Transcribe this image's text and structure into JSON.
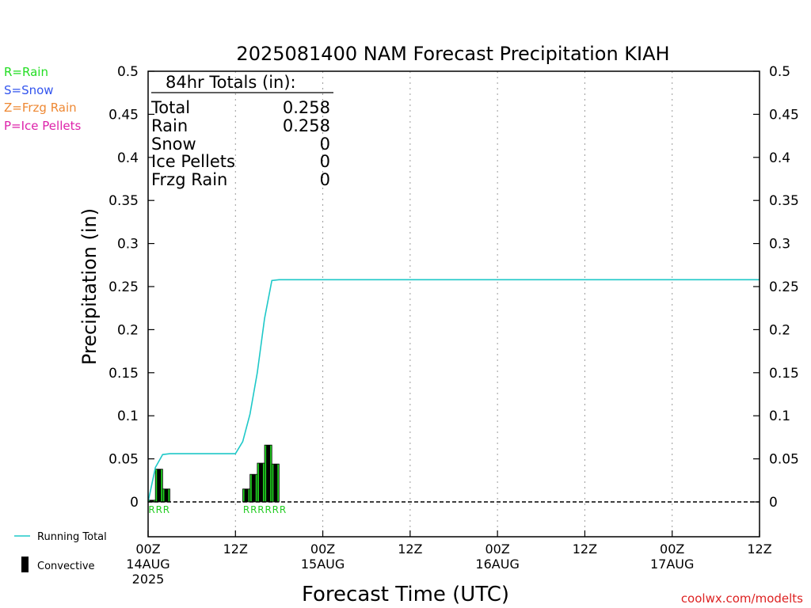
{
  "chart_data": {
    "type": "bar",
    "title": "2025081400 NAM Forecast Precipitation KIAH",
    "xlabel": "Forecast Time (UTC)",
    "ylabel": "Precipitation (in)",
    "ylim": [
      0,
      0.5
    ],
    "xlim_hours": [
      0,
      84
    ],
    "y_ticks": [
      "0",
      "0.05",
      "0.1",
      "0.15",
      "0.2",
      "0.25",
      "0.3",
      "0.35",
      "0.4",
      "0.45",
      "0.5"
    ],
    "x_ticks": [
      {
        "hour": 0,
        "line1": "00Z",
        "line2": "14AUG",
        "line3": "2025"
      },
      {
        "hour": 12,
        "line1": "12Z",
        "line2": "",
        "line3": ""
      },
      {
        "hour": 24,
        "line1": "00Z",
        "line2": "15AUG",
        "line3": ""
      },
      {
        "hour": 36,
        "line1": "12Z",
        "line2": "",
        "line3": ""
      },
      {
        "hour": 48,
        "line1": "00Z",
        "line2": "16AUG",
        "line3": ""
      },
      {
        "hour": 60,
        "line1": "12Z",
        "line2": "",
        "line3": ""
      },
      {
        "hour": 72,
        "line1": "00Z",
        "line2": "17AUG",
        "line3": ""
      },
      {
        "hour": 84,
        "line1": "12Z",
        "line2": "",
        "line3": ""
      }
    ],
    "grid": "vertical dotted at 12-hour ticks",
    "precip_type_legend": [
      {
        "label": "R=Rain",
        "color": "#22dd22"
      },
      {
        "label": "S=Snow",
        "color": "#3355ee"
      },
      {
        "label": "Z=Frzg Rain",
        "color": "#ee8833"
      },
      {
        "label": "P=Ice Pellets",
        "color": "#dd22aa"
      }
    ],
    "series_legend": [
      {
        "label": "Running Total",
        "color": "#1ec8c8"
      },
      {
        "label": "Convective",
        "color": "#000000"
      }
    ],
    "totals": {
      "heading": "84hr Totals (in):",
      "rows": [
        {
          "label": "Total",
          "value": "0.258"
        },
        {
          "label": "Rain",
          "value": "0.258"
        },
        {
          "label": "Snow",
          "value": "0"
        },
        {
          "label": "Ice Pellets",
          "value": "0"
        },
        {
          "label": "Frzg Rain",
          "value": "0"
        }
      ]
    },
    "series": [
      {
        "name": "Rain",
        "color": "#22dd22",
        "bar_start_hour": [
          0,
          1,
          2,
          13,
          14,
          15,
          16,
          17
        ],
        "bar_end_hour": [
          1,
          2,
          3,
          14,
          15,
          16,
          17,
          18
        ],
        "values": [
          0.002,
          0.038,
          0.015,
          0.015,
          0.032,
          0.045,
          0.066,
          0.044
        ]
      },
      {
        "name": "Convective",
        "color": "#000000",
        "bar_start_hour": [
          0,
          1,
          2,
          13,
          14,
          15,
          16,
          17
        ],
        "bar_end_hour": [
          1,
          2,
          3,
          14,
          15,
          16,
          17,
          18
        ],
        "values": [
          0.002,
          0.038,
          0.015,
          0.015,
          0.032,
          0.045,
          0.066,
          0.044
        ]
      },
      {
        "name": "Running Total",
        "color": "#1ec8c8",
        "x_hours": [
          0,
          1,
          2,
          3,
          12,
          13,
          14,
          15,
          16,
          17,
          18,
          84
        ],
        "values": [
          0,
          0.04,
          0.055,
          0.056,
          0.056,
          0.07,
          0.102,
          0.15,
          0.213,
          0.257,
          0.258,
          0.258
        ]
      }
    ],
    "ptype_markers": [
      {
        "hour": 0.5,
        "letter": "R"
      },
      {
        "hour": 1.5,
        "letter": "R"
      },
      {
        "hour": 2.5,
        "letter": "R"
      },
      {
        "hour": 13.5,
        "letter": "R"
      },
      {
        "hour": 14.5,
        "letter": "R"
      },
      {
        "hour": 15.5,
        "letter": "R"
      },
      {
        "hour": 16.5,
        "letter": "R"
      },
      {
        "hour": 17.5,
        "letter": "R"
      },
      {
        "hour": 18.5,
        "letter": "R"
      }
    ],
    "credit": "coolwx.com/modelts"
  }
}
